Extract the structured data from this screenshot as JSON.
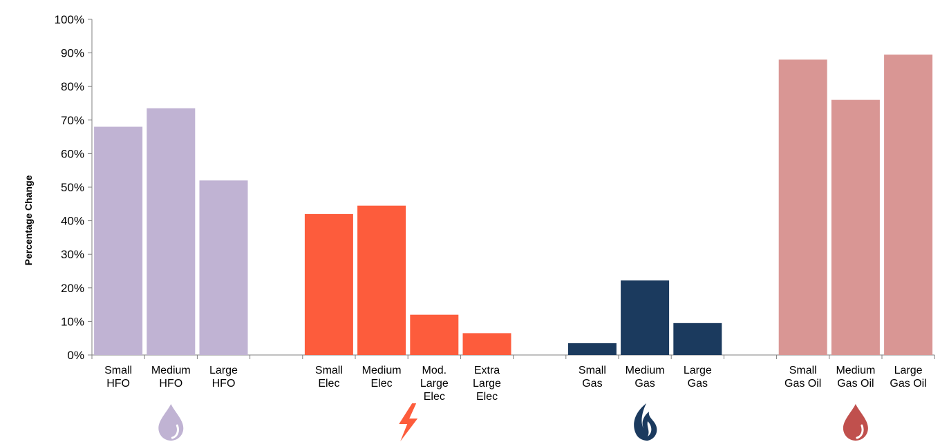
{
  "chart_data": {
    "type": "bar",
    "ylabel": "Percentage Change",
    "ylim": [
      0,
      100
    ],
    "yticks": [
      "0%",
      "10%",
      "20%",
      "30%",
      "40%",
      "50%",
      "60%",
      "70%",
      "80%",
      "90%",
      "100%"
    ],
    "grid": false,
    "groups": [
      {
        "icon": "droplet-icon",
        "color": "#c0b3d3",
        "bars": [
          {
            "label": [
              "Small",
              "HFO"
            ],
            "value": 68
          },
          {
            "label": [
              "Medium",
              "HFO"
            ],
            "value": 73.5
          },
          {
            "label": [
              "Large",
              "HFO"
            ],
            "value": 52
          }
        ]
      },
      {
        "icon": "lightning-icon",
        "color": "#fd5c3c",
        "bars": [
          {
            "label": [
              "Small",
              "Elec"
            ],
            "value": 42
          },
          {
            "label": [
              "Medium",
              "Elec"
            ],
            "value": 44.5
          },
          {
            "label": [
              "Mod.",
              "Large",
              "Elec"
            ],
            "value": 12
          },
          {
            "label": [
              "Extra",
              "Large",
              "Elec"
            ],
            "value": 6.5
          }
        ]
      },
      {
        "icon": "flame-icon",
        "color": "#1b3a5e",
        "bars": [
          {
            "label": [
              "Small",
              "Gas"
            ],
            "value": 3.5
          },
          {
            "label": [
              "Medium",
              "Gas"
            ],
            "value": 22.2
          },
          {
            "label": [
              "Large",
              "Gas"
            ],
            "value": 9.5
          }
        ]
      },
      {
        "icon": "oil-drop-icon",
        "color": "#d99694",
        "icon_color": "#c0504d",
        "bars": [
          {
            "label": [
              "Small",
              "Gas Oil"
            ],
            "value": 88
          },
          {
            "label": [
              "Medium",
              "Gas Oil"
            ],
            "value": 76
          },
          {
            "label": [
              "Large",
              "Gas Oil"
            ],
            "value": 89.5
          }
        ]
      }
    ]
  }
}
